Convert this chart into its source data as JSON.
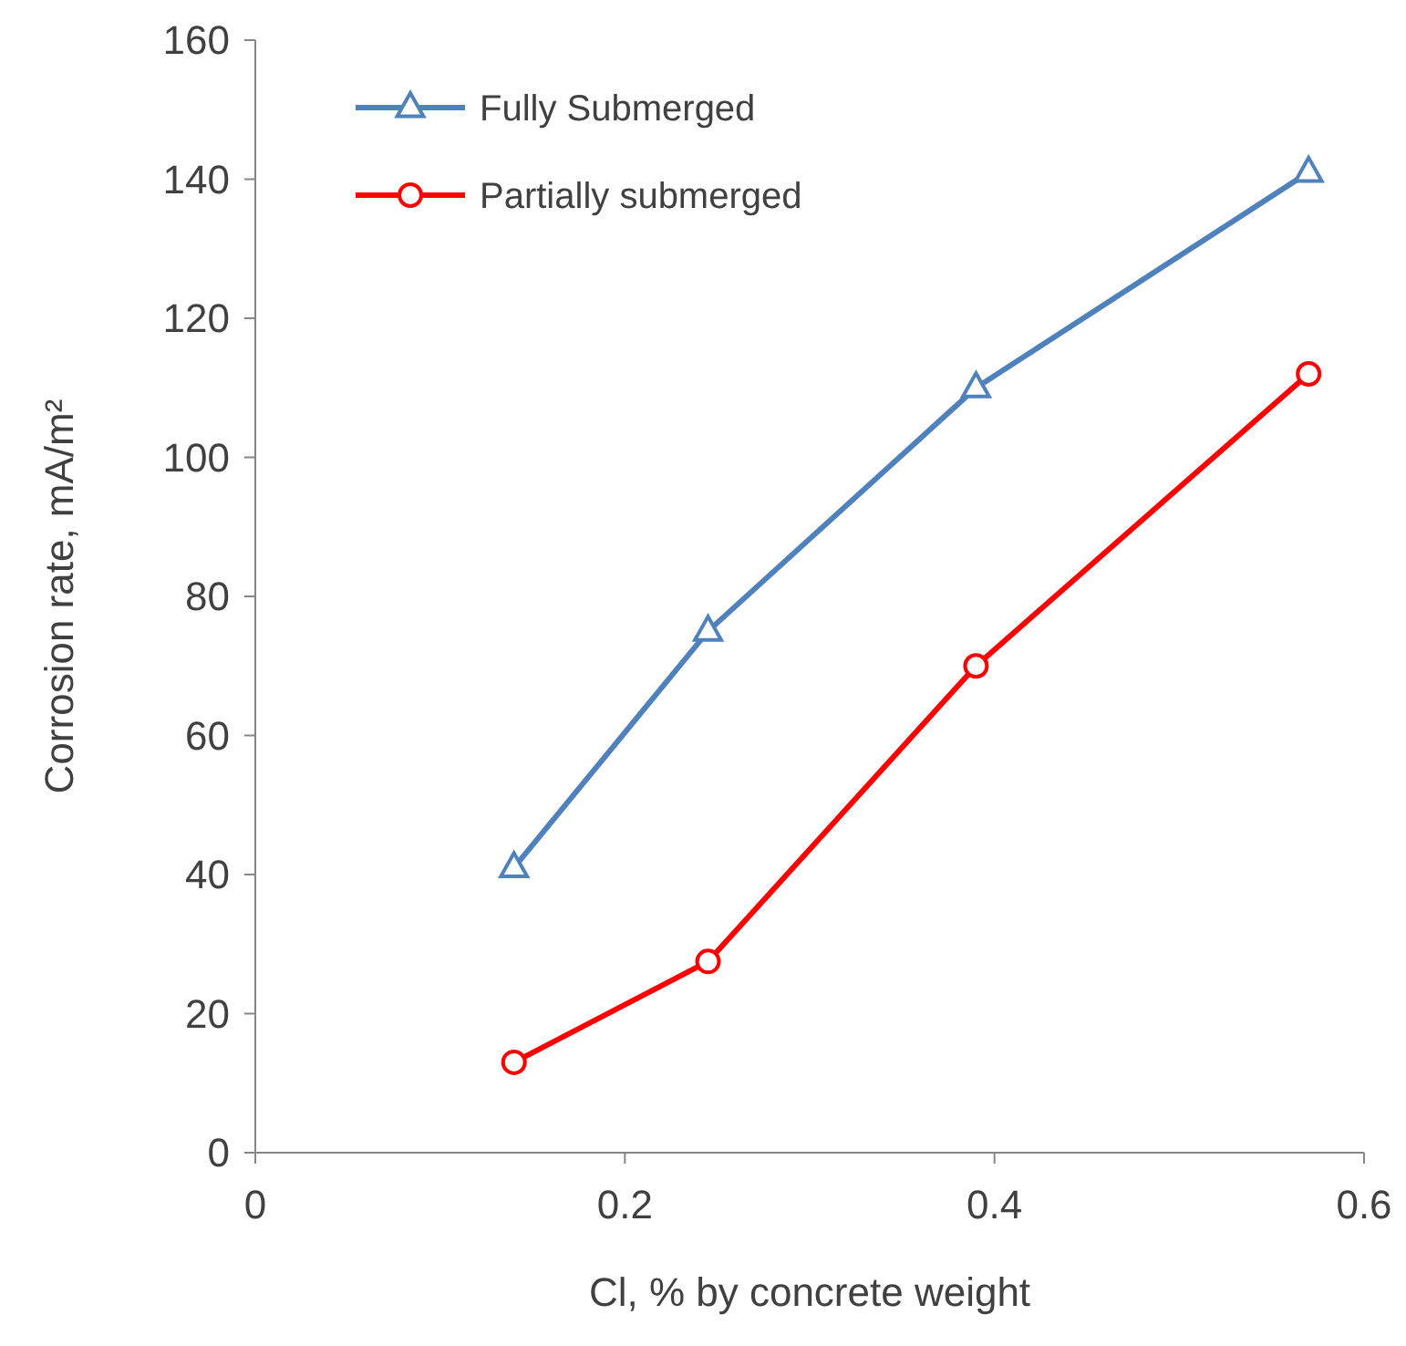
{
  "chart_data": {
    "type": "line",
    "xlabel": "Cl, % by concrete weight",
    "ylabel": "Corrosion rate, mA/m²",
    "xlim": [
      0,
      0.6
    ],
    "xticks": [
      0,
      0.2,
      0.4,
      0.6
    ],
    "ylim": [
      0,
      160
    ],
    "yticks": [
      0,
      20,
      40,
      60,
      80,
      100,
      120,
      140,
      160
    ],
    "grid": false,
    "legend": "top left",
    "series": [
      {
        "name": "Fully Submerged",
        "color": "#4f81bd",
        "marker": "triangle",
        "x": [
          0.14,
          0.245,
          0.39,
          0.57
        ],
        "values": [
          41,
          75,
          110,
          141
        ]
      },
      {
        "name": "Partially submerged",
        "color": "#ff0000",
        "marker": "circle",
        "x": [
          0.14,
          0.245,
          0.39,
          0.57
        ],
        "values": [
          13,
          27.5,
          70,
          112
        ]
      }
    ]
  }
}
